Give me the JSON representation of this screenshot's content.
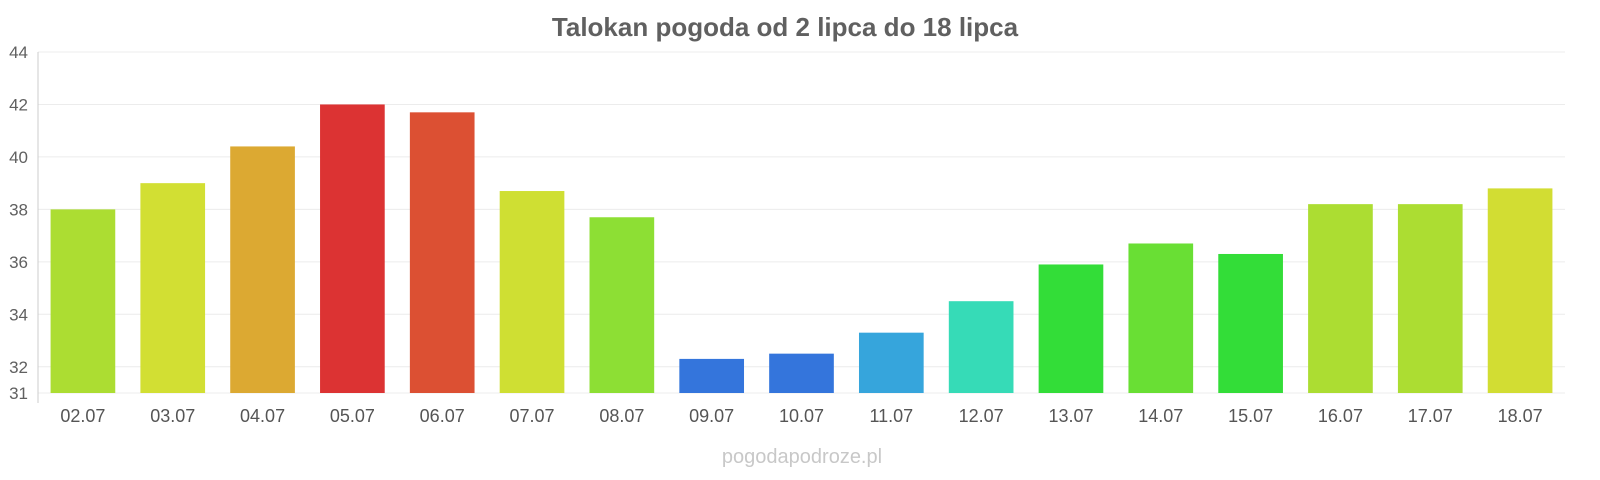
{
  "chart_data": {
    "type": "bar",
    "title": "Talokan pogoda od 2 lipca do 18 lipca",
    "xlabel": "",
    "ylabel": "",
    "ylim": [
      31,
      44
    ],
    "y_ticks": [
      "31",
      "32",
      "34",
      "36",
      "38",
      "40",
      "42",
      "44"
    ],
    "grid": true,
    "categories": [
      "02.07",
      "03.07",
      "04.07",
      "05.07",
      "06.07",
      "07.07",
      "08.07",
      "09.07",
      "10.07",
      "11.07",
      "12.07",
      "13.07",
      "14.07",
      "15.07",
      "16.07",
      "17.07",
      "18.07"
    ],
    "values": [
      38.0,
      39.0,
      40.4,
      42.0,
      41.7,
      38.7,
      37.7,
      32.3,
      32.5,
      33.3,
      34.5,
      35.9,
      36.7,
      36.3,
      38.2,
      38.2,
      38.8
    ],
    "bar_colors": [
      "#acdd32",
      "#d2df33",
      "#dca932",
      "#dc3333",
      "#dc5033",
      "#cfdf33",
      "#8ddf34",
      "#3475dc",
      "#3475dc",
      "#36a5dc",
      "#36dbb7",
      "#33dd38",
      "#69df34",
      "#33dd38",
      "#acdd32",
      "#acdd32",
      "#d2dd33"
    ]
  },
  "watermark": "pogodapodroze.pl"
}
